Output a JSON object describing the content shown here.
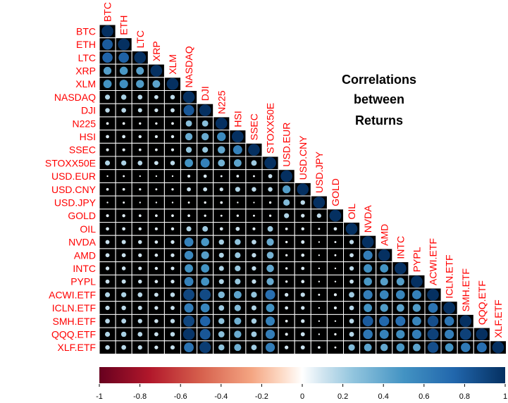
{
  "chart_data": {
    "type": "heatmap",
    "subtype": "lower-triangle circle correlation matrix",
    "title_lines": [
      "Correlations",
      "between",
      "Returns"
    ],
    "labels": [
      "BTC",
      "ETH",
      "LTC",
      "XRP",
      "XLM",
      "NASDAQ",
      "DJI",
      "N225",
      "HSI",
      "SSEC",
      "STOXX50E",
      "USD.EUR",
      "USD.CNY",
      "USD.JPY",
      "GOLD",
      "OIL",
      "NVDA",
      "AMD",
      "INTC",
      "PYPL",
      "ACWI.ETF",
      "ICLN.ETF",
      "SMH.ETF",
      "QQQ.ETF",
      "XLF.ETF"
    ],
    "matrix_lower": [
      [
        1
      ],
      [
        0.8,
        1
      ],
      [
        0.76,
        0.77,
        1
      ],
      [
        0.45,
        0.48,
        0.43,
        1
      ],
      [
        0.5,
        0.53,
        0.46,
        0.42,
        1
      ],
      [
        0.18,
        0.2,
        0.16,
        0.12,
        0.15,
        1
      ],
      [
        0.15,
        0.16,
        0.13,
        0.1,
        0.12,
        0.82,
        1
      ],
      [
        0.05,
        0.05,
        0.04,
        0.04,
        0.05,
        0.28,
        0.28,
        1
      ],
      [
        0.08,
        0.08,
        0.07,
        0.06,
        0.07,
        0.38,
        0.38,
        0.55,
        1
      ],
      [
        0.06,
        0.06,
        0.05,
        0.05,
        0.06,
        0.25,
        0.24,
        0.4,
        0.6,
        1
      ],
      [
        0.18,
        0.19,
        0.16,
        0.12,
        0.15,
        0.5,
        0.6,
        0.35,
        0.42,
        0.22,
        1
      ],
      [
        0.02,
        0.03,
        0.02,
        0.02,
        0.02,
        0.06,
        0.08,
        0.03,
        0.05,
        0.03,
        0.12,
        1
      ],
      [
        0.05,
        0.05,
        0.04,
        0.03,
        0.04,
        0.12,
        0.12,
        0.1,
        0.18,
        0.15,
        0.15,
        0.45,
        1
      ],
      [
        0.02,
        0.03,
        0.02,
        0.02,
        0.02,
        0.03,
        0.04,
        0.05,
        0.02,
        0.01,
        0.04,
        0.3,
        0.15,
        1
      ],
      [
        0.06,
        0.07,
        0.05,
        0.05,
        0.05,
        0.05,
        0.04,
        0.03,
        0.04,
        0.03,
        0.04,
        0.18,
        0.1,
        0.14,
        1
      ],
      [
        0.08,
        0.08,
        0.07,
        0.06,
        0.07,
        0.18,
        0.22,
        0.08,
        0.12,
        0.06,
        0.22,
        0.05,
        0.07,
        0.03,
        0.08,
        1
      ],
      [
        0.12,
        0.13,
        0.11,
        0.08,
        0.1,
        0.6,
        0.48,
        0.2,
        0.26,
        0.16,
        0.38,
        0.04,
        0.09,
        0.02,
        0.03,
        0.14,
        1
      ],
      [
        0.12,
        0.12,
        0.1,
        0.08,
        0.1,
        0.56,
        0.44,
        0.18,
        0.24,
        0.14,
        0.34,
        0.04,
        0.08,
        0.02,
        0.03,
        0.12,
        0.62,
        1
      ],
      [
        0.1,
        0.11,
        0.09,
        0.07,
        0.09,
        0.5,
        0.5,
        0.18,
        0.24,
        0.14,
        0.4,
        0.04,
        0.08,
        0.02,
        0.02,
        0.14,
        0.52,
        0.5,
        1
      ],
      [
        0.12,
        0.13,
        0.11,
        0.08,
        0.1,
        0.6,
        0.5,
        0.18,
        0.24,
        0.14,
        0.38,
        0.04,
        0.08,
        0.02,
        0.02,
        0.12,
        0.48,
        0.44,
        0.44,
        1
      ],
      [
        0.18,
        0.19,
        0.16,
        0.12,
        0.15,
        0.9,
        0.88,
        0.32,
        0.42,
        0.25,
        0.7,
        0.1,
        0.14,
        0.03,
        0.06,
        0.22,
        0.62,
        0.58,
        0.58,
        0.6,
        1
      ],
      [
        0.14,
        0.15,
        0.13,
        0.1,
        0.12,
        0.62,
        0.58,
        0.22,
        0.3,
        0.18,
        0.5,
        0.08,
        0.1,
        0.02,
        0.06,
        0.16,
        0.5,
        0.46,
        0.42,
        0.46,
        0.68,
        1
      ],
      [
        0.16,
        0.17,
        0.14,
        0.11,
        0.14,
        0.9,
        0.76,
        0.26,
        0.36,
        0.2,
        0.6,
        0.05,
        0.1,
        0.02,
        0.02,
        0.16,
        0.8,
        0.74,
        0.7,
        0.58,
        0.86,
        0.66,
        1
      ],
      [
        0.18,
        0.2,
        0.16,
        0.12,
        0.15,
        0.98,
        0.82,
        0.28,
        0.38,
        0.22,
        0.62,
        0.06,
        0.12,
        0.02,
        0.04,
        0.17,
        0.66,
        0.6,
        0.54,
        0.62,
        0.92,
        0.62,
        0.92,
        1
      ],
      [
        0.15,
        0.16,
        0.14,
        0.1,
        0.13,
        0.68,
        0.94,
        0.26,
        0.36,
        0.22,
        0.62,
        0.1,
        0.12,
        0.05,
        0.03,
        0.3,
        0.42,
        0.4,
        0.48,
        0.42,
        0.86,
        0.5,
        0.64,
        0.7,
        1
      ]
    ],
    "colorbar_ticks": [
      "-1",
      "-0.8",
      "-0.6",
      "-0.4",
      "-0.2",
      "0",
      "0.2",
      "0.4",
      "0.6",
      "0.8",
      "1"
    ],
    "color_range": [
      -1,
      1
    ],
    "colors": {
      "negative": "#67001f",
      "mid": "#ffffff",
      "positive": "#053061",
      "cell_background": "#000000",
      "label": "#ff0000"
    },
    "cell_shape": "circle"
  }
}
